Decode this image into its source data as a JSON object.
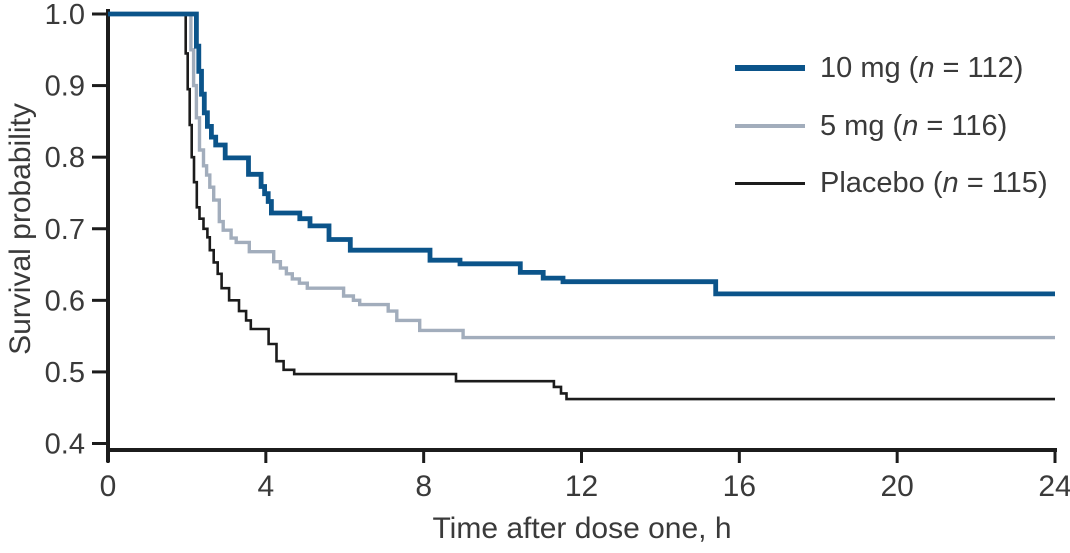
{
  "colors": {
    "axis": "#1c1c1c",
    "text": "#3a3a3a",
    "series_10mg": "#0b548a",
    "series_5mg": "#a2adbc",
    "series_placebo": "#1c1c1c",
    "background": "#ffffff"
  },
  "legend": {
    "items": [
      {
        "prefix": "10 mg (",
        "n": "n",
        "suffix": " = 112)"
      },
      {
        "prefix": "5 mg (",
        "n": "n",
        "suffix": " = 116)"
      },
      {
        "prefix": "Placebo (",
        "n": "n",
        "suffix": " = 115)"
      }
    ]
  },
  "chart_data": {
    "type": "line",
    "subtype": "kaplan-meier-step",
    "xlabel": "Time after dose one, h",
    "ylabel": "Survival probability",
    "xlim": [
      0,
      24
    ],
    "ylim": [
      0.4,
      1.0
    ],
    "grid": false,
    "legend_position": "top-right",
    "x_ticks": [
      0,
      4,
      8,
      12,
      16,
      20,
      24
    ],
    "x_tick_labels": [
      "0",
      "4",
      "8",
      "12",
      "16",
      "20",
      "24"
    ],
    "y_ticks": [
      1.0,
      0.9,
      0.8,
      0.7,
      0.6,
      0.5,
      0.4
    ],
    "y_tick_labels": [
      "1.0",
      "0.9",
      "0.8",
      "0.7",
      "0.6",
      "0.5",
      "0.4"
    ],
    "series": [
      {
        "name": "10 mg",
        "n": 112,
        "color": "#0b548a",
        "line_width": 4.8,
        "legend_line_height": 6,
        "points": [
          [
            0,
            1.0
          ],
          [
            2.24,
            0.955
          ],
          [
            2.3,
            0.92
          ],
          [
            2.37,
            0.888
          ],
          [
            2.44,
            0.862
          ],
          [
            2.52,
            0.843
          ],
          [
            2.62,
            0.828
          ],
          [
            2.73,
            0.817
          ],
          [
            2.97,
            0.799
          ],
          [
            3.56,
            0.776
          ],
          [
            3.88,
            0.759
          ],
          [
            3.97,
            0.749
          ],
          [
            4.06,
            0.738
          ],
          [
            4.14,
            0.722
          ],
          [
            4.86,
            0.714
          ],
          [
            5.12,
            0.704
          ],
          [
            5.6,
            0.685
          ],
          [
            6.14,
            0.67
          ],
          [
            8.16,
            0.656
          ],
          [
            8.92,
            0.651
          ],
          [
            10.45,
            0.639
          ],
          [
            11.03,
            0.631
          ],
          [
            11.53,
            0.626
          ],
          [
            15.4,
            0.609
          ],
          [
            24,
            0.609
          ]
        ]
      },
      {
        "name": "5 mg",
        "n": 116,
        "color": "#a2adbc",
        "line_width": 3.4,
        "legend_line_height": 4,
        "points": [
          [
            0,
            1.0
          ],
          [
            2.1,
            0.95
          ],
          [
            2.17,
            0.9
          ],
          [
            2.24,
            0.855
          ],
          [
            2.32,
            0.81
          ],
          [
            2.42,
            0.788
          ],
          [
            2.5,
            0.775
          ],
          [
            2.58,
            0.758
          ],
          [
            2.68,
            0.74
          ],
          [
            2.82,
            0.71
          ],
          [
            2.92,
            0.698
          ],
          [
            3.12,
            0.687
          ],
          [
            3.25,
            0.681
          ],
          [
            3.58,
            0.668
          ],
          [
            4.2,
            0.654
          ],
          [
            4.37,
            0.645
          ],
          [
            4.52,
            0.637
          ],
          [
            4.67,
            0.63
          ],
          [
            4.85,
            0.624
          ],
          [
            5.05,
            0.617
          ],
          [
            5.97,
            0.606
          ],
          [
            6.22,
            0.6
          ],
          [
            6.38,
            0.594
          ],
          [
            7.1,
            0.585
          ],
          [
            7.32,
            0.572
          ],
          [
            7.9,
            0.558
          ],
          [
            9.0,
            0.548
          ],
          [
            24,
            0.548
          ]
        ]
      },
      {
        "name": "Placebo",
        "n": 115,
        "color": "#1c1c1c",
        "line_width": 2.6,
        "legend_line_height": 3,
        "points": [
          [
            0,
            1.0
          ],
          [
            1.97,
            0.945
          ],
          [
            2.02,
            0.895
          ],
          [
            2.07,
            0.845
          ],
          [
            2.12,
            0.8
          ],
          [
            2.18,
            0.765
          ],
          [
            2.25,
            0.73
          ],
          [
            2.32,
            0.714
          ],
          [
            2.42,
            0.7
          ],
          [
            2.52,
            0.688
          ],
          [
            2.58,
            0.67
          ],
          [
            2.68,
            0.653
          ],
          [
            2.78,
            0.637
          ],
          [
            2.88,
            0.617
          ],
          [
            3.07,
            0.6
          ],
          [
            3.32,
            0.585
          ],
          [
            3.5,
            0.572
          ],
          [
            3.62,
            0.56
          ],
          [
            4.07,
            0.539
          ],
          [
            4.27,
            0.515
          ],
          [
            4.45,
            0.503
          ],
          [
            4.72,
            0.497
          ],
          [
            8.82,
            0.487
          ],
          [
            11.3,
            0.479
          ],
          [
            11.48,
            0.47
          ],
          [
            11.62,
            0.462
          ],
          [
            24,
            0.462
          ]
        ]
      }
    ]
  }
}
